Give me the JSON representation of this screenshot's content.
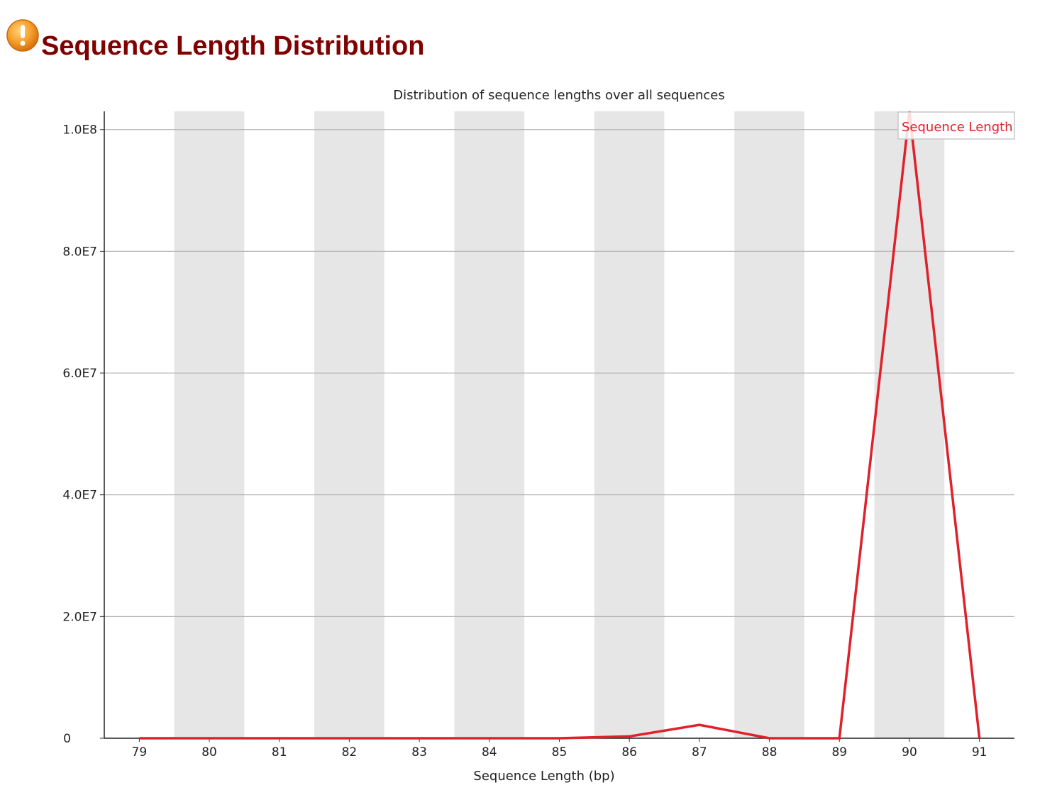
{
  "page": {
    "title": "Sequence Length Distribution",
    "status_icon": "warning-icon"
  },
  "colors": {
    "title": "#800000",
    "series": "#e0202a",
    "band": "#e6e6e6",
    "grid": "#b4b4b4",
    "icon": "#f08a1c"
  },
  "chart_data": {
    "type": "line",
    "title": "Distribution of sequence lengths over all sequences",
    "xlabel": "Sequence Length (bp)",
    "ylabel": "",
    "categories": [
      "79",
      "80",
      "81",
      "82",
      "83",
      "84",
      "85",
      "86",
      "87",
      "88",
      "89",
      "90",
      "91"
    ],
    "series": [
      {
        "name": "Sequence Length",
        "values": [
          0,
          0,
          0,
          0,
          0,
          0,
          0,
          300000,
          2200000,
          0,
          0,
          103000000,
          0
        ]
      }
    ],
    "ylim": [
      0,
      103000000
    ],
    "yticks": [
      {
        "value": 0,
        "label": "0"
      },
      {
        "value": 20000000,
        "label": "2.0E7"
      },
      {
        "value": 40000000,
        "label": "4.0E7"
      },
      {
        "value": 60000000,
        "label": "6.0E7"
      },
      {
        "value": 80000000,
        "label": "8.0E7"
      },
      {
        "value": 100000000,
        "label": "1.0E8"
      }
    ],
    "grid": true,
    "alternating_bands": true,
    "legend_position": "top-right"
  }
}
